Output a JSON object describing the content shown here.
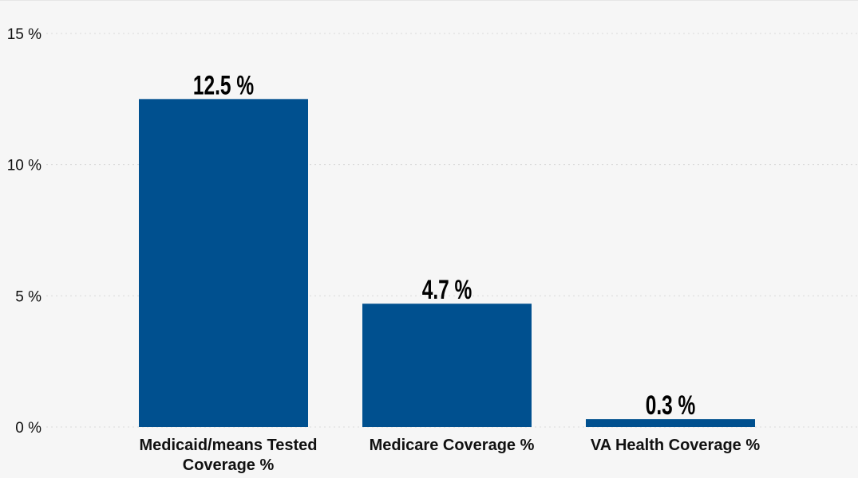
{
  "chart_data": {
    "type": "bar",
    "categories": [
      [
        "Medicaid/means Tested",
        "Coverage %"
      ],
      [
        "Medicare Coverage %"
      ],
      [
        "VA Health Coverage %"
      ]
    ],
    "values": [
      12.5,
      4.7,
      0.3
    ],
    "data_labels": [
      "12.5 %",
      "4.7 %",
      "0.3 %"
    ],
    "ylim": [
      0,
      15
    ],
    "yticks": [
      0,
      5,
      10,
      15
    ],
    "ytick_labels": [
      "0 %",
      "5 %",
      "10 %",
      "15 %"
    ],
    "grid": true,
    "legend": "none",
    "title": "",
    "xlabel": "",
    "ylabel": "",
    "colors": {
      "bar": "#00508f",
      "background": "#f6f6f6",
      "grid": "#d9d9d9"
    }
  }
}
